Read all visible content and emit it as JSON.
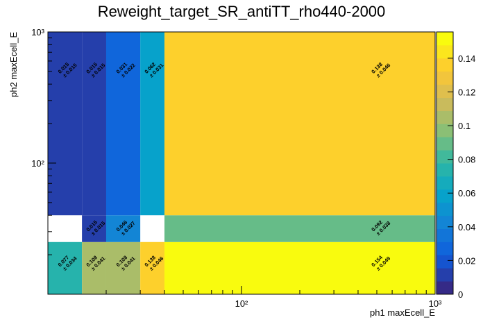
{
  "chart_data": {
    "type": "heatmap",
    "title": "Reweight_target_SR_antiTT_rho440-2000",
    "xlabel": "ph1 maxEcell_E",
    "ylabel": "ph2 maxEcell_E",
    "x_edges": [
      10,
      15,
      20,
      30,
      40,
      1000
    ],
    "y_edges": [
      10,
      25,
      40,
      1000
    ],
    "values": [
      [
        0.077,
        0.108,
        0.108,
        0.138,
        0.154
      ],
      [
        null,
        0.015,
        0.046,
        null,
        0.092
      ],
      [
        0.015,
        0.015,
        0.031,
        0.062,
        0.138
      ]
    ],
    "errors": [
      [
        0.034,
        0.041,
        0.041,
        0.046,
        0.049
      ],
      [
        null,
        0.015,
        0.027,
        null,
        0.038
      ],
      [
        0.015,
        0.015,
        0.022,
        0.031,
        0.046
      ]
    ],
    "error_labels": [
      [
        "± 0.034",
        "± 0.041",
        "± 0.041",
        "± 0.046",
        "± 0.049"
      ],
      [
        null,
        "± 0.015",
        "± 0.027",
        null,
        "± 0.038"
      ],
      [
        "± 0.015",
        "± 0.015",
        "± 0.022",
        "± 0.031",
        "± 0.046"
      ]
    ],
    "xlim": [
      10,
      1000
    ],
    "ylim": [
      10,
      1000
    ],
    "log_x": true,
    "log_y": true,
    "xticks": [
      {
        "value": 100,
        "label": "10²"
      },
      {
        "value": 1000,
        "label": "10³"
      }
    ],
    "yticks": [
      {
        "value": 100,
        "label": "10²"
      },
      {
        "value": 1000,
        "label": "10³"
      }
    ],
    "xminorticks": [
      20,
      30,
      40,
      50,
      60,
      70,
      80,
      90,
      200,
      300,
      400,
      500,
      600,
      700,
      800,
      900
    ],
    "yminorticks": [
      20,
      30,
      40,
      50,
      60,
      70,
      80,
      90,
      200,
      300,
      400,
      500,
      600,
      700,
      800,
      900
    ],
    "zlim": [
      0,
      0.1556
    ],
    "zticks": [
      0,
      0.02,
      0.04,
      0.06,
      0.08,
      0.1,
      0.12,
      0.14
    ],
    "levels": 20,
    "palette": [
      "#352a87",
      "#0f5cdd",
      "#1481d6",
      "#06a4ca",
      "#2eb7a4",
      "#87bf77",
      "#d1bb59",
      "#fec832",
      "#f9fb0e"
    ]
  }
}
